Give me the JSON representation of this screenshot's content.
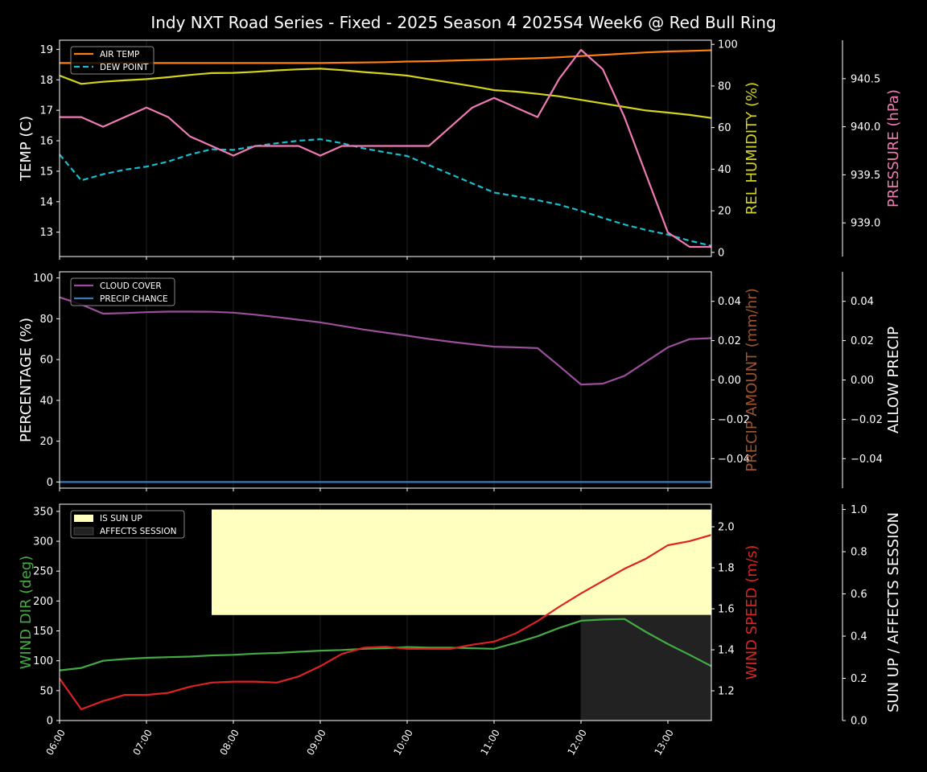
{
  "title": "Indy NXT Road Series - Fixed - 2025 Season 4 2025S4 Week6 @ Red Bull Ring",
  "colors": {
    "background": "#000000",
    "axis": "#ffffff",
    "air_temp": "#ff7f0e",
    "dew_point": "#17becf",
    "humidity": "#d4d41a",
    "pressure": "#f07ab4",
    "cloud_cover": "#9b4f9b",
    "precip_chance": "#3a78b8",
    "precip_amount_label": "#a0522d",
    "wind_dir": "#44aa44",
    "wind_speed": "#dd2222",
    "sun_up": "#ffffc0",
    "affects_session": "#222222"
  },
  "x_ticks": [
    "06:00",
    "07:00",
    "08:00",
    "09:00",
    "10:00",
    "11:00",
    "12:00",
    "13:00"
  ],
  "chart_data": [
    {
      "type": "line",
      "x": [
        "06:00",
        "06:15",
        "06:30",
        "06:45",
        "07:00",
        "07:15",
        "07:30",
        "07:45",
        "08:00",
        "08:15",
        "08:30",
        "08:45",
        "09:00",
        "09:15",
        "09:30",
        "09:45",
        "10:00",
        "10:15",
        "10:30",
        "10:45",
        "11:00",
        "11:15",
        "11:30",
        "11:45",
        "12:00",
        "12:15",
        "12:30",
        "12:45",
        "13:00",
        "13:15",
        "13:30"
      ],
      "left_axis": {
        "label": "TEMP (C)",
        "ylim": [
          12.2,
          19.3
        ],
        "ticks": [
          "13",
          "14",
          "15",
          "16",
          "17",
          "18",
          "19"
        ]
      },
      "right_axis": {
        "label": "REL HUMIDITY (%)",
        "ylim": [
          -2,
          102
        ],
        "ticks": [
          "0",
          "20",
          "40",
          "60",
          "80",
          "100"
        ]
      },
      "far_axis": {
        "label": "PRESSURE (hPa)",
        "ylim": [
          938.65,
          940.9
        ],
        "ticks": [
          "939.0",
          "939.5",
          "940.0",
          "940.5"
        ]
      },
      "legend": {
        "placement": "top-left",
        "entries": [
          "AIR TEMP",
          "DEW POINT"
        ]
      },
      "series": [
        {
          "name": "AIR TEMP",
          "axis": "left",
          "style": "solid",
          "values": [
            18.55,
            18.55,
            18.55,
            18.55,
            18.55,
            18.55,
            18.55,
            18.55,
            18.55,
            18.55,
            18.55,
            18.55,
            18.55,
            18.56,
            18.57,
            18.58,
            18.6,
            18.61,
            18.63,
            18.65,
            18.67,
            18.69,
            18.71,
            18.74,
            18.78,
            18.82,
            18.86,
            18.9,
            18.93,
            18.95,
            18.97
          ]
        },
        {
          "name": "DEW POINT",
          "axis": "left",
          "style": "dashed",
          "values": [
            15.55,
            14.7,
            14.9,
            15.05,
            15.15,
            15.32,
            15.55,
            15.72,
            15.7,
            15.82,
            15.92,
            16.0,
            16.05,
            15.92,
            15.75,
            15.62,
            15.5,
            15.2,
            14.9,
            14.6,
            14.3,
            14.18,
            14.05,
            13.9,
            13.7,
            13.47,
            13.25,
            13.07,
            12.92,
            12.72,
            12.55
          ]
        },
        {
          "name": "REL HUMIDITY",
          "axis": "right",
          "style": "solid",
          "values": [
            85,
            81,
            82,
            82.7,
            83.3,
            84.2,
            85.3,
            86.2,
            86.3,
            86.8,
            87.5,
            88,
            88.3,
            87.6,
            86.7,
            85.9,
            85,
            83.3,
            81.6,
            79.9,
            78,
            77.3,
            76.2,
            75,
            73.3,
            71.6,
            69.9,
            68.2,
            67.2,
            66.1,
            64.6
          ]
        },
        {
          "name": "PRESSURE",
          "axis": "far",
          "style": "solid",
          "values": [
            940.1,
            940.1,
            940.0,
            940.1,
            940.2,
            940.1,
            939.9,
            939.8,
            939.7,
            939.8,
            939.8,
            939.8,
            939.7,
            939.8,
            939.8,
            939.8,
            939.8,
            939.8,
            940.0,
            940.2,
            940.3,
            940.2,
            940.1,
            940.5,
            940.8,
            940.6,
            940.1,
            939.5,
            938.9,
            938.75,
            938.75
          ]
        }
      ]
    },
    {
      "type": "line",
      "x": [
        "06:00",
        "06:15",
        "06:30",
        "06:45",
        "07:00",
        "07:15",
        "07:30",
        "07:45",
        "08:00",
        "08:15",
        "08:30",
        "08:45",
        "09:00",
        "09:15",
        "09:30",
        "09:45",
        "10:00",
        "10:15",
        "10:30",
        "10:45",
        "11:00",
        "11:15",
        "11:30",
        "11:45",
        "12:00",
        "12:15",
        "12:30",
        "12:45",
        "13:00",
        "13:15",
        "13:30"
      ],
      "left_axis": {
        "label": "PERCENTAGE (%)",
        "ylim": [
          -3,
          103
        ],
        "ticks": [
          "0",
          "20",
          "40",
          "60",
          "80",
          "100"
        ]
      },
      "right_axis": {
        "label": "PRECIP AMOUNT (mm/hr)",
        "ylim": [
          -0.055,
          0.055
        ],
        "ticks": [
          "−0.04",
          "−0.02",
          "0.00",
          "0.02",
          "0.04"
        ]
      },
      "far_axis": {
        "label": "ALLOW PRECIP",
        "ylim": [
          -0.055,
          0.055
        ],
        "ticks": [
          "−0.04",
          "−0.02",
          "0.00",
          "0.02",
          "0.04"
        ]
      },
      "legend": {
        "placement": "top-left",
        "entries": [
          "CLOUD COVER",
          "PRECIP CHANCE"
        ]
      },
      "series": [
        {
          "name": "CLOUD COVER",
          "axis": "left",
          "style": "solid",
          "values": [
            90.5,
            87,
            82.5,
            82.8,
            83.2,
            83.5,
            83.5,
            83.4,
            83,
            82,
            80.8,
            79.5,
            78.2,
            76.5,
            74.7,
            73.2,
            71.7,
            70.1,
            68.7,
            67.5,
            66.3,
            66,
            65.6,
            56.8,
            47.8,
            48.2,
            52,
            59,
            66,
            70,
            70.5
          ]
        },
        {
          "name": "PRECIP CHANCE",
          "axis": "left",
          "style": "solid",
          "values": [
            0,
            0,
            0,
            0,
            0,
            0,
            0,
            0,
            0,
            0,
            0,
            0,
            0,
            0,
            0,
            0,
            0,
            0,
            0,
            0,
            0,
            0,
            0,
            0,
            0,
            0,
            0,
            0,
            0,
            0,
            0
          ]
        }
      ]
    },
    {
      "type": "line",
      "x": [
        "06:00",
        "06:15",
        "06:30",
        "06:45",
        "07:00",
        "07:15",
        "07:30",
        "07:45",
        "08:00",
        "08:15",
        "08:30",
        "08:45",
        "09:00",
        "09:15",
        "09:30",
        "09:45",
        "10:00",
        "10:15",
        "10:30",
        "10:45",
        "11:00",
        "11:15",
        "11:30",
        "11:45",
        "12:00",
        "12:15",
        "12:30",
        "12:45",
        "13:00",
        "13:15",
        "13:30"
      ],
      "left_axis": {
        "label": "WIND DIR (deg)",
        "ylim": [
          0,
          362
        ],
        "ticks": [
          "0",
          "50",
          "100",
          "150",
          "200",
          "250",
          "300",
          "350"
        ]
      },
      "right_axis": {
        "label": "WIND SPEED (m/s)",
        "ylim": [
          1.055,
          2.11
        ],
        "ticks": [
          "1.2",
          "1.4",
          "1.6",
          "1.8",
          "2.0"
        ]
      },
      "far_axis": {
        "label": "SUN UP / AFFECTS SESSION",
        "ylim": [
          0,
          1.025
        ],
        "ticks": [
          "0.0",
          "0.2",
          "0.4",
          "0.6",
          "0.8",
          "1.0"
        ]
      },
      "legend": {
        "placement": "top-left",
        "entries": [
          "IS SUN UP",
          "AFFECTS SESSION"
        ]
      },
      "shaded": [
        {
          "name": "IS SUN UP",
          "from": "07:45",
          "to": "13:30",
          "y0": 0.5,
          "y1": 1.0
        },
        {
          "name": "AFFECTS SESSION",
          "from": "12:00",
          "to": "13:30",
          "y0": 0.0,
          "y1": 0.5
        }
      ],
      "series": [
        {
          "name": "WIND DIR",
          "axis": "left",
          "style": "solid",
          "values": [
            84,
            88,
            100,
            103,
            105,
            106,
            107,
            109,
            110,
            112,
            113,
            115,
            117,
            118,
            120,
            121,
            123,
            122,
            122,
            121,
            120,
            130,
            141,
            155,
            167,
            169,
            170,
            148,
            128,
            110,
            91
          ]
        },
        {
          "name": "WIND SPEED",
          "axis": "right",
          "style": "solid",
          "values": [
            1.26,
            1.11,
            1.15,
            1.18,
            1.18,
            1.19,
            1.22,
            1.24,
            1.245,
            1.245,
            1.24,
            1.27,
            1.32,
            1.38,
            1.41,
            1.415,
            1.405,
            1.405,
            1.405,
            1.425,
            1.44,
            1.48,
            1.54,
            1.61,
            1.675,
            1.735,
            1.795,
            1.845,
            1.91,
            1.93,
            1.96
          ]
        }
      ]
    }
  ]
}
